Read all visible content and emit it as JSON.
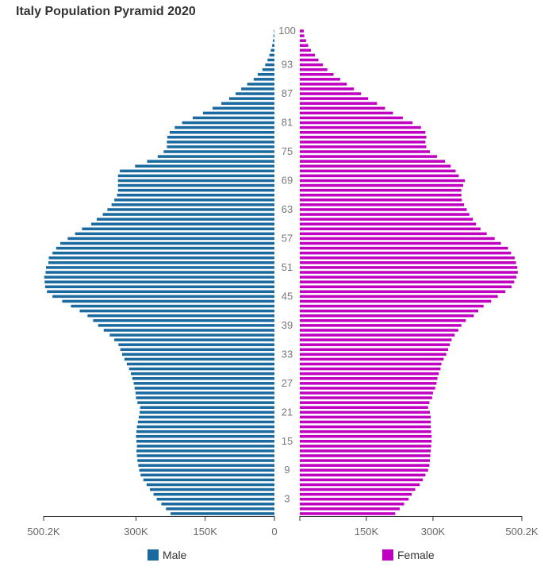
{
  "chart_data": {
    "type": "bar",
    "orientation": "horizontal",
    "title": "Italy Population Pyramid 2020",
    "colors": {
      "Male": "#1a6aa0",
      "Female": "#c000c0"
    },
    "age_tick_labels": [
      "3",
      "9",
      "15",
      "21",
      "27",
      "33",
      "39",
      "45",
      "51",
      "57",
      "63",
      "69",
      "75",
      "81",
      "87",
      "93",
      "100"
    ],
    "male_axis": {
      "ticks": [
        "500.2K",
        "300K",
        "150K",
        "0"
      ],
      "max": 500200
    },
    "female_axis": {
      "ticks": [
        "150K",
        "300K",
        "500.2K"
      ],
      "max": 500200
    },
    "categories": [
      0,
      1,
      2,
      3,
      4,
      5,
      6,
      7,
      8,
      9,
      10,
      11,
      12,
      13,
      14,
      15,
      16,
      17,
      18,
      19,
      20,
      21,
      22,
      23,
      24,
      25,
      26,
      27,
      28,
      29,
      30,
      31,
      32,
      33,
      34,
      35,
      36,
      37,
      38,
      39,
      40,
      41,
      42,
      43,
      44,
      45,
      46,
      47,
      48,
      49,
      50,
      51,
      52,
      53,
      54,
      55,
      56,
      57,
      58,
      59,
      60,
      61,
      62,
      63,
      64,
      65,
      66,
      67,
      68,
      69,
      70,
      71,
      72,
      73,
      74,
      75,
      76,
      77,
      78,
      79,
      80,
      81,
      82,
      83,
      84,
      85,
      86,
      87,
      88,
      89,
      90,
      91,
      92,
      93,
      94,
      95,
      96,
      97,
      98,
      99,
      100
    ],
    "series": [
      {
        "name": "Male",
        "values": [
          225000,
          235000,
          245000,
          255000,
          262000,
          270000,
          277000,
          284000,
          290000,
          293000,
          295000,
          297000,
          298000,
          299000,
          298000,
          299000,
          300000,
          299000,
          298000,
          296000,
          294000,
          292000,
          291000,
          297000,
          300000,
          301000,
          303000,
          305000,
          308000,
          311000,
          315000,
          320000,
          325000,
          330000,
          334000,
          338000,
          347000,
          357000,
          370000,
          382000,
          393000,
          405000,
          422000,
          441000,
          460000,
          481000,
          493000,
          497000,
          498000,
          499000,
          496000,
          495000,
          490000,
          489000,
          481000,
          473000,
          464000,
          448000,
          432000,
          417000,
          397000,
          385000,
          372000,
          362000,
          353000,
          347000,
          341000,
          339000,
          339000,
          339000,
          339000,
          335000,
          302000,
          276000,
          253000,
          240000,
          233000,
          233000,
          232000,
          227000,
          216000,
          200000,
          177000,
          155000,
          134000,
          115000,
          98000,
          84000,
          72000,
          59000,
          45000,
          36000,
          26000,
          20000,
          15000,
          11000,
          8000,
          5000,
          3000,
          2000,
          1000
        ]
      },
      {
        "name": "Female",
        "values": [
          215000,
          225000,
          235000,
          245000,
          252000,
          260000,
          270000,
          277000,
          283000,
          289000,
          292000,
          293000,
          294000,
          295000,
          296000,
          297000,
          297000,
          296000,
          295000,
          295000,
          295000,
          293000,
          289000,
          292000,
          298000,
          300000,
          305000,
          308000,
          310000,
          313000,
          317000,
          319000,
          324000,
          330000,
          334000,
          338000,
          342000,
          349000,
          357000,
          364000,
          374000,
          392000,
          402000,
          414000,
          431000,
          446000,
          463000,
          477000,
          483000,
          488000,
          491000,
          490000,
          487000,
          484000,
          476000,
          469000,
          453000,
          439000,
          421000,
          407000,
          397000,
          390000,
          382000,
          376000,
          370000,
          365000,
          364000,
          364000,
          368000,
          372000,
          358000,
          351000,
          340000,
          327000,
          309000,
          293000,
          285000,
          283000,
          285000,
          283000,
          273000,
          254000,
          232000,
          210000,
          192000,
          174000,
          154000,
          138000,
          122000,
          106000,
          91000,
          76000,
          62000,
          52000,
          42000,
          34000,
          25000,
          19000,
          14000,
          10000,
          9000
        ]
      }
    ],
    "legend": [
      "Male",
      "Female"
    ],
    "legend_position": "bottom"
  }
}
